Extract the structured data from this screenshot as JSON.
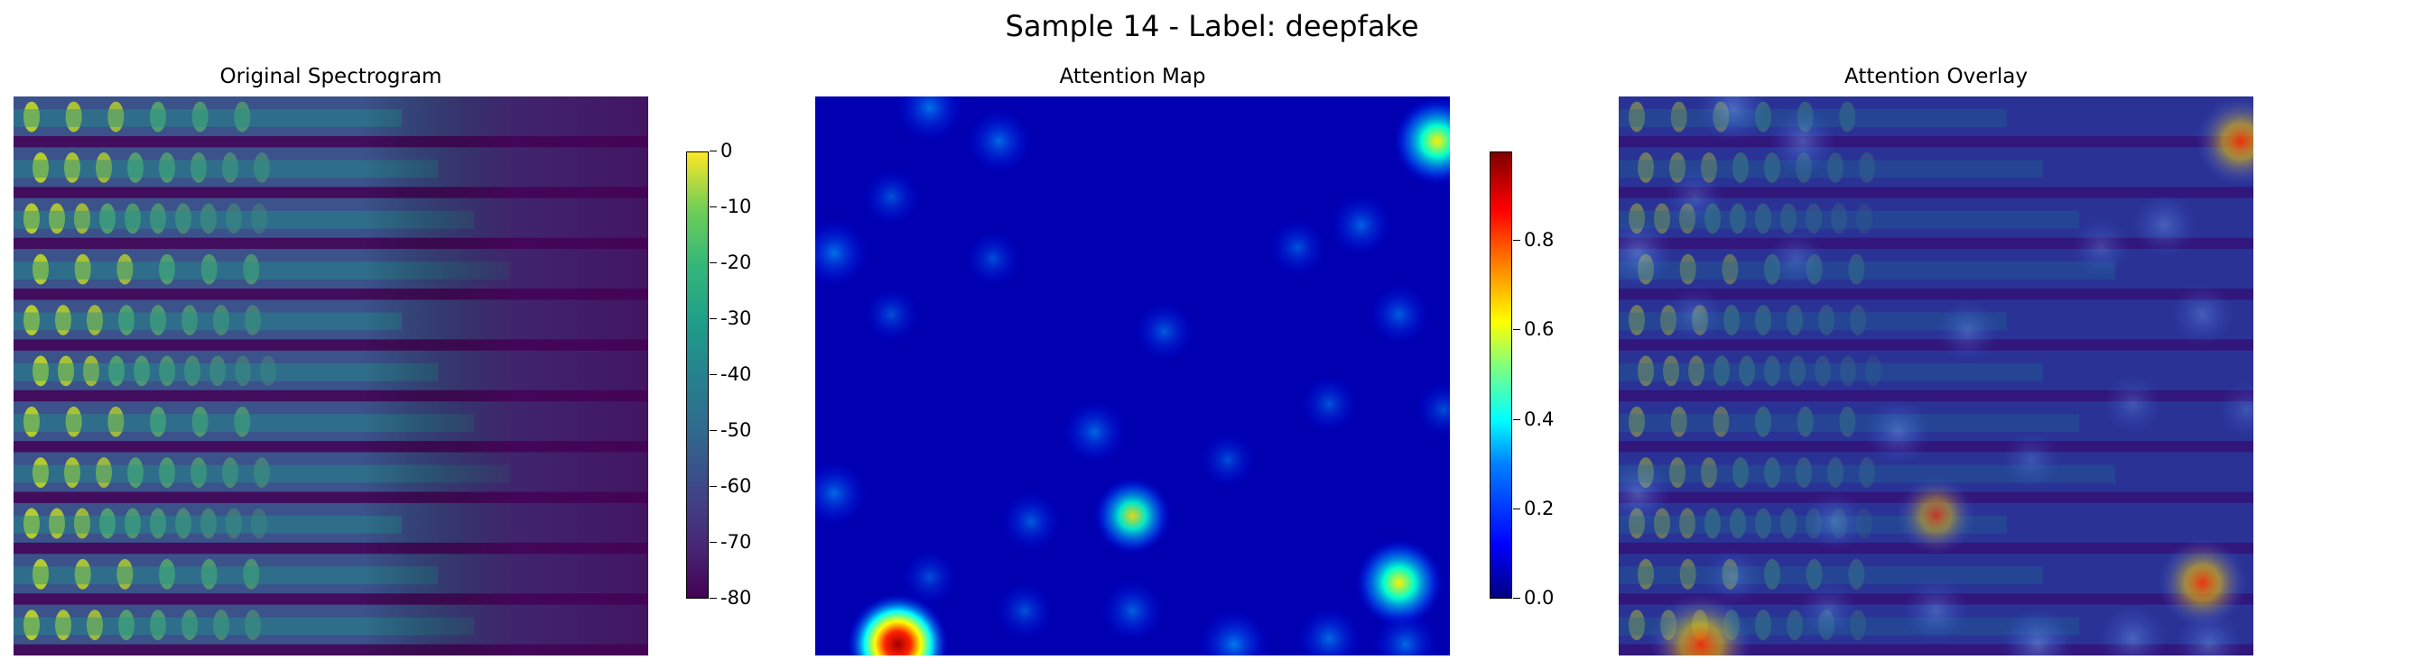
{
  "suptitle": "Sample 14 - Label: deepfake",
  "chart_data": [
    {
      "type": "heatmap",
      "title": "Original Spectrogram",
      "axes": "off",
      "colormap": "viridis",
      "colorbar": {
        "range": [
          -80,
          0
        ],
        "ticks": [
          "0",
          "-10",
          "-20",
          "-30",
          "-40",
          "-50",
          "-60",
          "-70",
          "-80"
        ]
      }
    },
    {
      "type": "heatmap",
      "title": "Attention Map",
      "axes": "off",
      "colormap": "jet",
      "colorbar": {
        "range": [
          0.0,
          1.0
        ],
        "ticks": [
          "0.8",
          "0.6",
          "0.4",
          "0.2",
          "0.0"
        ]
      },
      "hotspots": [
        {
          "x": 0.18,
          "y": 0.02,
          "v": 0.35
        },
        {
          "x": 0.29,
          "y": 0.08,
          "v": 0.3
        },
        {
          "x": 0.98,
          "y": 0.08,
          "v": 0.7
        },
        {
          "x": 0.12,
          "y": 0.18,
          "v": 0.15
        },
        {
          "x": 0.03,
          "y": 0.28,
          "v": 0.35
        },
        {
          "x": 0.28,
          "y": 0.29,
          "v": 0.12
        },
        {
          "x": 0.86,
          "y": 0.23,
          "v": 0.25
        },
        {
          "x": 0.76,
          "y": 0.27,
          "v": 0.15
        },
        {
          "x": 0.92,
          "y": 0.39,
          "v": 0.22
        },
        {
          "x": 0.12,
          "y": 0.39,
          "v": 0.12
        },
        {
          "x": 0.55,
          "y": 0.42,
          "v": 0.2
        },
        {
          "x": 0.81,
          "y": 0.55,
          "v": 0.15
        },
        {
          "x": 0.99,
          "y": 0.56,
          "v": 0.12
        },
        {
          "x": 0.44,
          "y": 0.6,
          "v": 0.28
        },
        {
          "x": 0.65,
          "y": 0.65,
          "v": 0.12
        },
        {
          "x": 0.03,
          "y": 0.71,
          "v": 0.3
        },
        {
          "x": 0.34,
          "y": 0.76,
          "v": 0.2
        },
        {
          "x": 0.5,
          "y": 0.75,
          "v": 0.5
        },
        {
          "x": 0.92,
          "y": 0.87,
          "v": 0.7
        },
        {
          "x": 0.18,
          "y": 0.86,
          "v": 0.12
        },
        {
          "x": 0.33,
          "y": 0.92,
          "v": 0.15
        },
        {
          "x": 0.5,
          "y": 0.92,
          "v": 0.25
        },
        {
          "x": 0.13,
          "y": 0.98,
          "v": 0.95
        },
        {
          "x": 0.66,
          "y": 0.98,
          "v": 0.4
        },
        {
          "x": 0.81,
          "y": 0.97,
          "v": 0.3
        },
        {
          "x": 0.93,
          "y": 0.98,
          "v": 0.3
        }
      ]
    },
    {
      "type": "heatmap",
      "title": "Attention Overlay",
      "axes": "off",
      "description_layers": [
        "spectrogram",
        "attention (jet, alpha 0.5)"
      ]
    }
  ]
}
